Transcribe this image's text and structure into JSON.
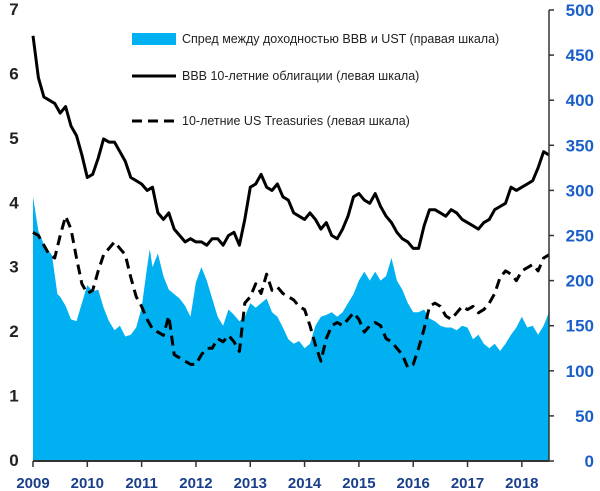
{
  "chart_data": {
    "type": "area+line",
    "legend": {
      "placement": "top-right",
      "entries": [
        {
          "key": "spread",
          "label": "Спред между доходностью BBB и UST (правая шкала)",
          "style": "area",
          "color": "#00b0f0"
        },
        {
          "key": "bbb",
          "label": "BBB 10-летние облигации (левая шкала)",
          "style": "solid",
          "color": "#000000"
        },
        {
          "key": "ust",
          "label": "10-летние US Treasuries (левая шкала)",
          "style": "dashed",
          "color": "#000000"
        }
      ]
    },
    "x_axis": {
      "ticks": [
        "2009",
        "2010",
        "2011",
        "2012",
        "2013",
        "2014",
        "2015",
        "2016",
        "2017",
        "2018"
      ],
      "range": [
        2009.0,
        2018.5
      ]
    },
    "y_left": {
      "range": [
        0,
        7
      ],
      "ticks": [
        "0",
        "1",
        "2",
        "3",
        "4",
        "5",
        "6",
        "7"
      ]
    },
    "y_right": {
      "range": [
        0,
        500
      ],
      "ticks": [
        "0",
        "50",
        "100",
        "150",
        "200",
        "250",
        "300",
        "350",
        "400",
        "450",
        "500"
      ]
    },
    "grid": false,
    "series": [
      {
        "name": "Спред между доходностью BBB и UST (правая шкала)",
        "axis": "right",
        "type": "area",
        "x": [
          2009.0,
          2009.1,
          2009.2,
          2009.35,
          2009.45,
          2009.5,
          2009.6,
          2009.7,
          2009.8,
          2009.9,
          2010.0,
          2010.1,
          2010.2,
          2010.3,
          2010.4,
          2010.5,
          2010.6,
          2010.7,
          2010.8,
          2010.9,
          2011.0,
          2011.1,
          2011.15,
          2011.2,
          2011.3,
          2011.4,
          2011.5,
          2011.6,
          2011.7,
          2011.8,
          2011.9,
          2012.0,
          2012.1,
          2012.2,
          2012.3,
          2012.4,
          2012.5,
          2012.6,
          2012.7,
          2012.8,
          2012.9,
          2013.0,
          2013.1,
          2013.2,
          2013.3,
          2013.4,
          2013.5,
          2013.6,
          2013.7,
          2013.8,
          2013.9,
          2014.0,
          2014.1,
          2014.2,
          2014.3,
          2014.4,
          2014.5,
          2014.6,
          2014.7,
          2014.8,
          2014.9,
          2015.0,
          2015.1,
          2015.2,
          2015.3,
          2015.4,
          2015.5,
          2015.6,
          2015.7,
          2015.8,
          2015.9,
          2016.0,
          2016.1,
          2016.2,
          2016.3,
          2016.4,
          2016.5,
          2016.6,
          2016.7,
          2016.8,
          2016.9,
          2017.0,
          2017.1,
          2017.2,
          2017.3,
          2017.4,
          2017.5,
          2017.6,
          2017.7,
          2017.8,
          2017.9,
          2018.0,
          2018.1,
          2018.2,
          2018.3,
          2018.4,
          2018.5
        ],
        "values": [
          293,
          255,
          240,
          228,
          185,
          182,
          172,
          157,
          155,
          175,
          195,
          188,
          190,
          170,
          155,
          145,
          150,
          138,
          140,
          148,
          170,
          215,
          235,
          215,
          230,
          205,
          190,
          185,
          180,
          172,
          160,
          198,
          215,
          200,
          180,
          160,
          150,
          168,
          162,
          155,
          160,
          175,
          170,
          175,
          180,
          165,
          160,
          148,
          135,
          130,
          133,
          125,
          130,
          150,
          160,
          162,
          165,
          160,
          165,
          175,
          185,
          200,
          210,
          200,
          210,
          200,
          205,
          225,
          200,
          190,
          175,
          165,
          165,
          168,
          158,
          155,
          150,
          148,
          148,
          145,
          150,
          148,
          135,
          140,
          130,
          125,
          130,
          122,
          130,
          140,
          148,
          160,
          148,
          150,
          140,
          150,
          165
        ]
      },
      {
        "name": "BBB 10-летние облигации (левая шкала)",
        "axis": "left",
        "type": "line",
        "x": [
          2009.0,
          2009.1,
          2009.2,
          2009.3,
          2009.4,
          2009.5,
          2009.6,
          2009.7,
          2009.8,
          2009.9,
          2010.0,
          2010.1,
          2010.2,
          2010.3,
          2010.4,
          2010.5,
          2010.6,
          2010.7,
          2010.8,
          2010.9,
          2011.0,
          2011.1,
          2011.2,
          2011.3,
          2011.4,
          2011.5,
          2011.6,
          2011.7,
          2011.8,
          2011.9,
          2012.0,
          2012.1,
          2012.2,
          2012.3,
          2012.4,
          2012.5,
          2012.6,
          2012.7,
          2012.8,
          2012.9,
          2013.0,
          2013.1,
          2013.2,
          2013.3,
          2013.4,
          2013.5,
          2013.6,
          2013.7,
          2013.8,
          2013.9,
          2014.0,
          2014.1,
          2014.2,
          2014.3,
          2014.4,
          2014.5,
          2014.6,
          2014.7,
          2014.8,
          2014.9,
          2015.0,
          2015.1,
          2015.2,
          2015.3,
          2015.4,
          2015.5,
          2015.6,
          2015.7,
          2015.8,
          2015.9,
          2016.0,
          2016.1,
          2016.2,
          2016.3,
          2016.4,
          2016.5,
          2016.6,
          2016.7,
          2016.8,
          2016.9,
          2017.0,
          2017.1,
          2017.2,
          2017.3,
          2017.4,
          2017.5,
          2017.6,
          2017.7,
          2017.8,
          2017.9,
          2018.0,
          2018.1,
          2018.2,
          2018.3,
          2018.4,
          2018.5
        ],
        "values": [
          6.6,
          5.95,
          5.65,
          5.6,
          5.55,
          5.4,
          5.5,
          5.2,
          5.05,
          4.75,
          4.4,
          4.45,
          4.7,
          5.0,
          4.95,
          4.95,
          4.8,
          4.65,
          4.4,
          4.35,
          4.3,
          4.2,
          4.25,
          3.85,
          3.75,
          3.85,
          3.6,
          3.5,
          3.4,
          3.45,
          3.4,
          3.4,
          3.35,
          3.45,
          3.45,
          3.35,
          3.5,
          3.55,
          3.35,
          3.75,
          4.25,
          4.3,
          4.45,
          4.25,
          4.2,
          4.3,
          4.1,
          4.05,
          3.85,
          3.8,
          3.75,
          3.85,
          3.75,
          3.6,
          3.7,
          3.5,
          3.45,
          3.6,
          3.8,
          4.1,
          4.15,
          4.05,
          4.0,
          4.15,
          3.95,
          3.8,
          3.7,
          3.55,
          3.45,
          3.4,
          3.3,
          3.3,
          3.65,
          3.9,
          3.9,
          3.85,
          3.8,
          3.9,
          3.85,
          3.75,
          3.7,
          3.65,
          3.6,
          3.7,
          3.75,
          3.9,
          3.95,
          4.0,
          4.25,
          4.2,
          4.25,
          4.3,
          4.35,
          4.55,
          4.8,
          4.75
        ]
      },
      {
        "name": "10-летние US Treasuries (левая шкала)",
        "axis": "left",
        "type": "line",
        "x": [
          2009.0,
          2009.1,
          2009.2,
          2009.3,
          2009.4,
          2009.5,
          2009.6,
          2009.7,
          2009.8,
          2009.9,
          2010.0,
          2010.1,
          2010.2,
          2010.3,
          2010.4,
          2010.5,
          2010.6,
          2010.7,
          2010.8,
          2010.9,
          2011.0,
          2011.1,
          2011.2,
          2011.3,
          2011.4,
          2011.5,
          2011.6,
          2011.7,
          2011.8,
          2011.9,
          2012.0,
          2012.1,
          2012.2,
          2012.3,
          2012.4,
          2012.5,
          2012.6,
          2012.7,
          2012.8,
          2012.9,
          2013.0,
          2013.1,
          2013.2,
          2013.3,
          2013.4,
          2013.5,
          2013.6,
          2013.7,
          2013.8,
          2013.9,
          2014.0,
          2014.1,
          2014.2,
          2014.3,
          2014.4,
          2014.5,
          2014.6,
          2014.7,
          2014.8,
          2014.9,
          2015.0,
          2015.1,
          2015.2,
          2015.3,
          2015.4,
          2015.5,
          2015.6,
          2015.7,
          2015.8,
          2015.9,
          2016.0,
          2016.1,
          2016.2,
          2016.3,
          2016.4,
          2016.5,
          2016.6,
          2016.7,
          2016.8,
          2016.9,
          2017.0,
          2017.1,
          2017.2,
          2017.3,
          2017.4,
          2017.5,
          2017.6,
          2017.7,
          2017.8,
          2017.9,
          2018.0,
          2018.1,
          2018.2,
          2018.3,
          2018.4,
          2018.5
        ],
        "values": [
          3.55,
          3.5,
          3.35,
          3.2,
          3.15,
          3.5,
          3.8,
          3.6,
          3.15,
          2.75,
          2.6,
          2.65,
          2.95,
          3.2,
          3.3,
          3.4,
          3.3,
          3.2,
          2.85,
          2.55,
          2.4,
          2.2,
          2.05,
          2.0,
          1.95,
          2.25,
          1.65,
          1.6,
          1.55,
          1.5,
          1.5,
          1.65,
          1.75,
          1.75,
          1.9,
          1.85,
          1.95,
          1.85,
          1.7,
          2.45,
          2.55,
          2.75,
          2.6,
          2.9,
          2.65,
          2.7,
          2.6,
          2.55,
          2.5,
          2.4,
          2.35,
          2.1,
          1.8,
          1.55,
          1.9,
          2.1,
          2.15,
          2.1,
          2.2,
          2.3,
          2.2,
          2.0,
          2.1,
          2.15,
          2.1,
          1.9,
          1.85,
          1.75,
          1.65,
          1.45,
          1.5,
          1.75,
          2.05,
          2.4,
          2.45,
          2.4,
          2.25,
          2.2,
          2.3,
          2.4,
          2.35,
          2.4,
          2.3,
          2.35,
          2.45,
          2.6,
          2.85,
          2.95,
          2.9,
          2.8,
          2.95,
          3.0,
          3.05,
          2.95,
          3.15,
          3.2
        ]
      }
    ]
  }
}
